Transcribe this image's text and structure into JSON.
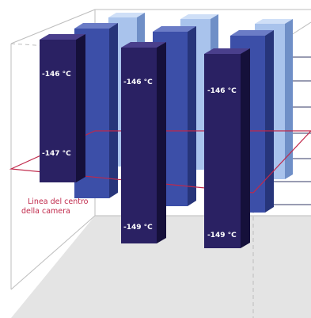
{
  "colors": {
    "dark_front": "#2a2163",
    "dark_side": "#15103a",
    "dark_top": "#4a3f8c",
    "mid_front": "#3c4fa8",
    "mid_side": "#27357a",
    "mid_top": "#6b7cc6",
    "light_front": "#a9c3ec",
    "light_side": "#6f8fc7",
    "light_top": "#cfdff7",
    "plane_line": "#c0284a",
    "floor": "#e4e4e4",
    "frame": "#bdbdbd"
  },
  "center_line_label": {
    "line1": "Linea del centro",
    "line2": "della camera"
  },
  "columns": [
    {
      "top_label": "-146 °C",
      "bottom_label": "-147 °C"
    },
    {
      "top_label": "-146 °C",
      "bottom_label": "-149 °C"
    },
    {
      "top_label": "-146 °C",
      "bottom_label": "-149 °C"
    }
  ]
}
